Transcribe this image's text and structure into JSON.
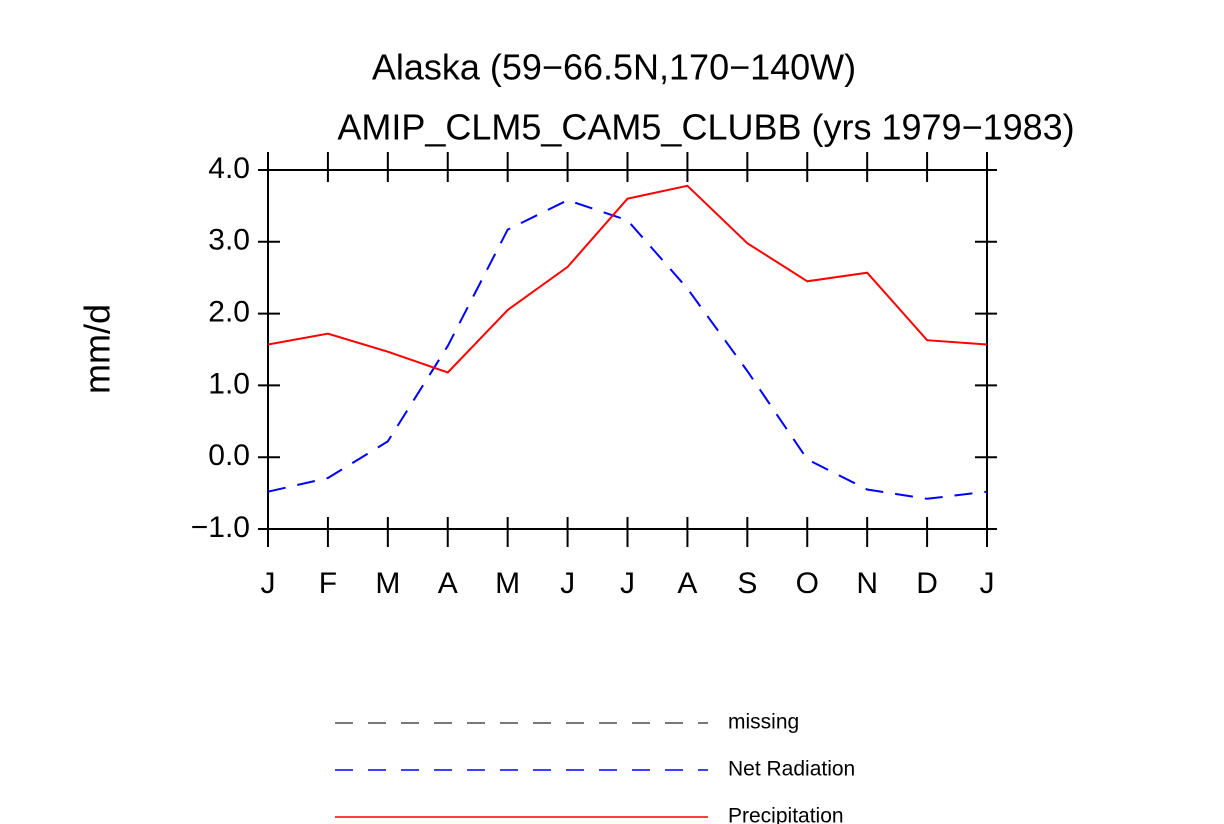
{
  "chart_data": {
    "type": "line",
    "title": "Alaska (59−66.5N,170−140W)",
    "subtitle": "AMIP_CLM5_CAM5_CLUBB (yrs 1979−1983)",
    "y_label": "mm/d",
    "categories": [
      "J",
      "F",
      "M",
      "A",
      "M",
      "J",
      "J",
      "A",
      "S",
      "O",
      "N",
      "D",
      "J"
    ],
    "ylim": [
      -1.0,
      4.0
    ],
    "yticks": [
      {
        "value": 4.0,
        "label": "4.0"
      },
      {
        "value": 3.0,
        "label": "3.0"
      },
      {
        "value": 2.0,
        "label": "2.0"
      },
      {
        "value": 1.0,
        "label": "1.0"
      },
      {
        "value": 0.0,
        "label": "0.0"
      },
      {
        "value": -1.0,
        "label": "−1.0"
      }
    ],
    "series": [
      {
        "name": "missing",
        "color": "#000000",
        "dash": true,
        "values": [
          null,
          null,
          null,
          null,
          null,
          null,
          null,
          null,
          null,
          null,
          null,
          null,
          null
        ]
      },
      {
        "name": "Net Radiation",
        "color": "#0000ff",
        "dash": true,
        "values": [
          -0.48,
          -0.29,
          0.22,
          1.55,
          3.17,
          3.58,
          3.3,
          2.35,
          1.2,
          -0.03,
          -0.45,
          -0.58,
          -0.48
        ]
      },
      {
        "name": "Precipitation",
        "color": "#ff0000",
        "dash": false,
        "values": [
          1.57,
          1.72,
          1.47,
          1.18,
          2.05,
          2.65,
          3.6,
          3.78,
          2.98,
          2.45,
          2.57,
          1.63,
          1.57
        ]
      }
    ]
  }
}
